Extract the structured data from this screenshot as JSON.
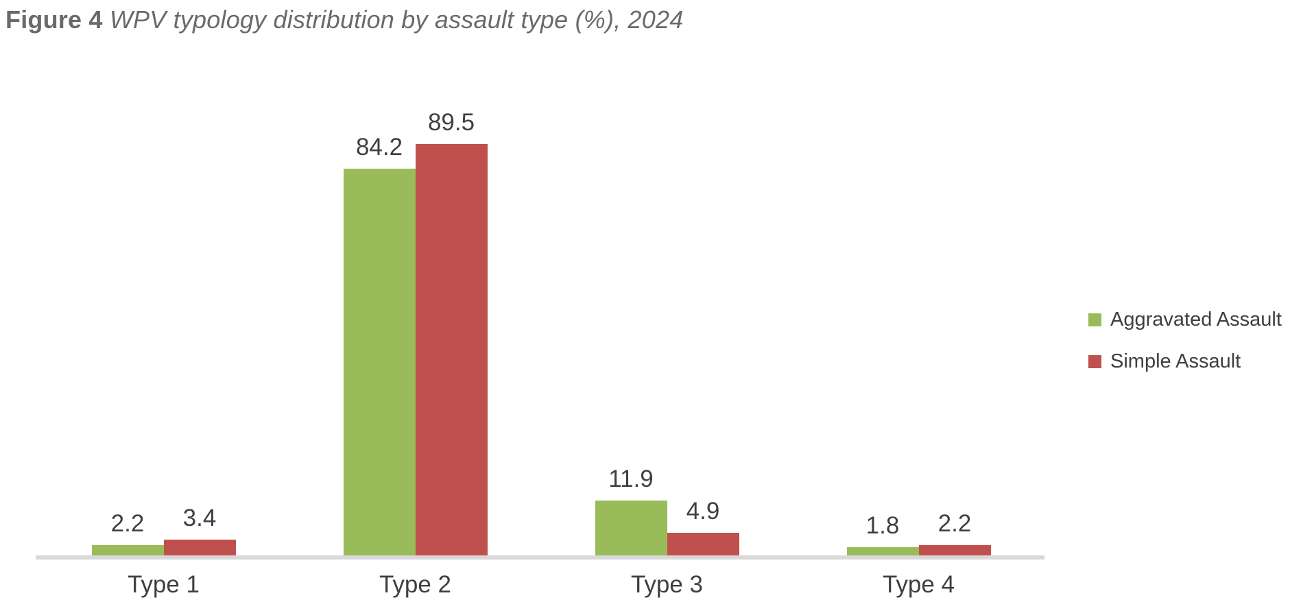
{
  "figure": {
    "title_prefix": "Figure 4",
    "title_text": "WPV typology distribution by assault type (%), 2024"
  },
  "legend": {
    "items": [
      {
        "label": "Aggravated Assault",
        "color": "#9ABB59"
      },
      {
        "label": "Simple Assault",
        "color": "#C0504D"
      }
    ]
  },
  "chart_data": {
    "type": "bar",
    "title": "Figure 4 WPV typology distribution by assault type (%), 2024",
    "categories": [
      "Type 1",
      "Type 2",
      "Type 3",
      "Type 4"
    ],
    "series": [
      {
        "name": "Aggravated Assault",
        "color": "#9ABB59",
        "values": [
          2.2,
          84.2,
          11.9,
          1.8
        ]
      },
      {
        "name": "Simple Assault",
        "color": "#C0504D",
        "values": [
          3.4,
          89.5,
          4.9,
          2.2
        ]
      }
    ],
    "xlabel": "",
    "ylabel": "",
    "ylim": [
      0,
      100
    ],
    "grid": false,
    "y_axis_visible": false,
    "data_labels": "outside-end",
    "data_label_decimals": 1,
    "legend_position": "right",
    "axis_line_color": "#D9D9D9",
    "label_color": "#3F3F3F",
    "title_color": "#6A6A6A",
    "background": "#FFFFFF"
  }
}
